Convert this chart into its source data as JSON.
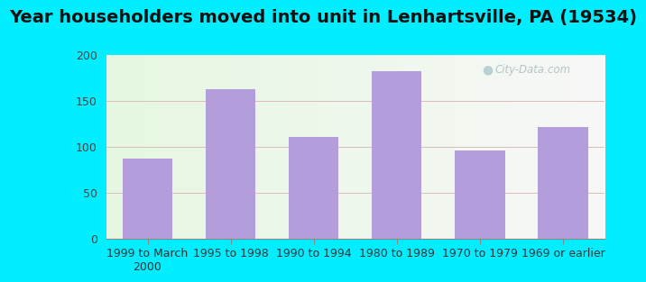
{
  "title": "Year householders moved into unit in Lenhartsville, PA (19534)",
  "categories": [
    "1999 to March\n2000",
    "1995 to 1998",
    "1990 to 1994",
    "1980 to 1989",
    "1970 to 1979",
    "1969 or earlier"
  ],
  "values": [
    87,
    162,
    110,
    182,
    96,
    121
  ],
  "bar_color": "#b39ddb",
  "bar_edge_color": "#b39ddb",
  "background_outer": "#00eeff",
  "ylim": [
    0,
    200
  ],
  "yticks": [
    0,
    50,
    100,
    150,
    200
  ],
  "title_fontsize": 14,
  "tick_fontsize": 9,
  "watermark_text": "City-Data.com",
  "watermark_color": "#aabbc0",
  "grid_color": "#ddcccc"
}
